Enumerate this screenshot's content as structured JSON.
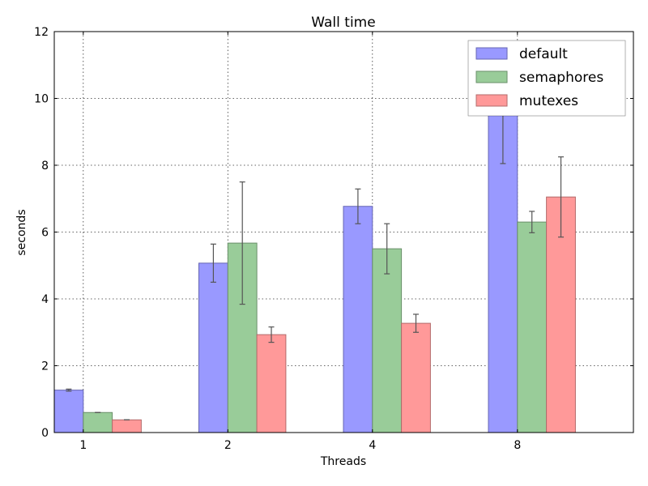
{
  "chart_data": {
    "type": "bar",
    "title": "Wall time",
    "xlabel": "Threads",
    "ylabel": "seconds",
    "categories": [
      "1",
      "2",
      "4",
      "8"
    ],
    "ylim": [
      0,
      12
    ],
    "yticks": [
      0,
      2,
      4,
      6,
      8,
      10,
      12
    ],
    "grid": true,
    "legend_position": "top-right",
    "series": [
      {
        "name": "default",
        "color": "#9999ff",
        "edge_color": "#6666b3",
        "values": [
          1.27,
          5.07,
          6.77,
          9.53
        ],
        "errors": [
          0.03,
          0.57,
          0.52,
          1.48
        ]
      },
      {
        "name": "semaphores",
        "color": "#99cc99",
        "edge_color": "#6a8f6a",
        "values": [
          0.6,
          5.67,
          5.5,
          6.3
        ],
        "errors": [
          0.0,
          1.83,
          0.75,
          0.32
        ]
      },
      {
        "name": "mutexes",
        "color": "#ff9999",
        "edge_color": "#b36b6b",
        "values": [
          0.38,
          2.93,
          3.27,
          7.05
        ],
        "errors": [
          0.0,
          0.23,
          0.27,
          1.2
        ]
      }
    ]
  }
}
